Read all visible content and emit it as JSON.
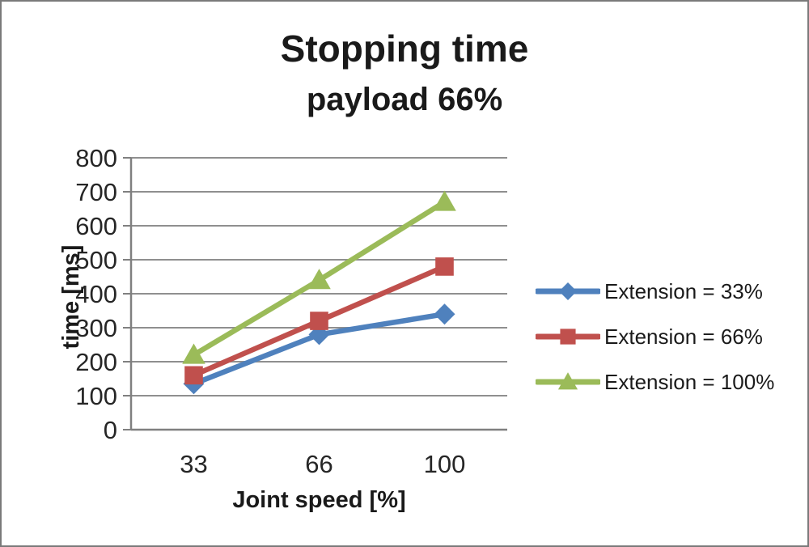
{
  "chart_data": {
    "type": "line",
    "title": "Stopping time",
    "subtitle": "payload 66%",
    "xlabel": "Joint speed [%]",
    "ylabel": "time [ms]",
    "categories": [
      "33",
      "66",
      "100"
    ],
    "y_ticks": [
      0,
      100,
      200,
      300,
      400,
      500,
      600,
      700,
      800
    ],
    "ylim": [
      0,
      800
    ],
    "grid": "horizontal",
    "legend_position": "right",
    "series": [
      {
        "name": "Extension = 33%",
        "marker": "diamond",
        "color": "#4F81BD",
        "values": [
          135,
          280,
          340
        ]
      },
      {
        "name": "Extension = 66%",
        "marker": "square",
        "color": "#C0504D",
        "values": [
          160,
          320,
          480
        ]
      },
      {
        "name": "Extension = 100%",
        "marker": "triangle",
        "color": "#9BBB59",
        "values": [
          220,
          440,
          670
        ]
      }
    ],
    "colors": {
      "background": "#FFFFFF",
      "gridline": "#8F8F8F",
      "axis": "#808080",
      "tick_text": "#262626",
      "title_text": "#1A1A1A",
      "frame_border": "#7A7A7A"
    }
  }
}
